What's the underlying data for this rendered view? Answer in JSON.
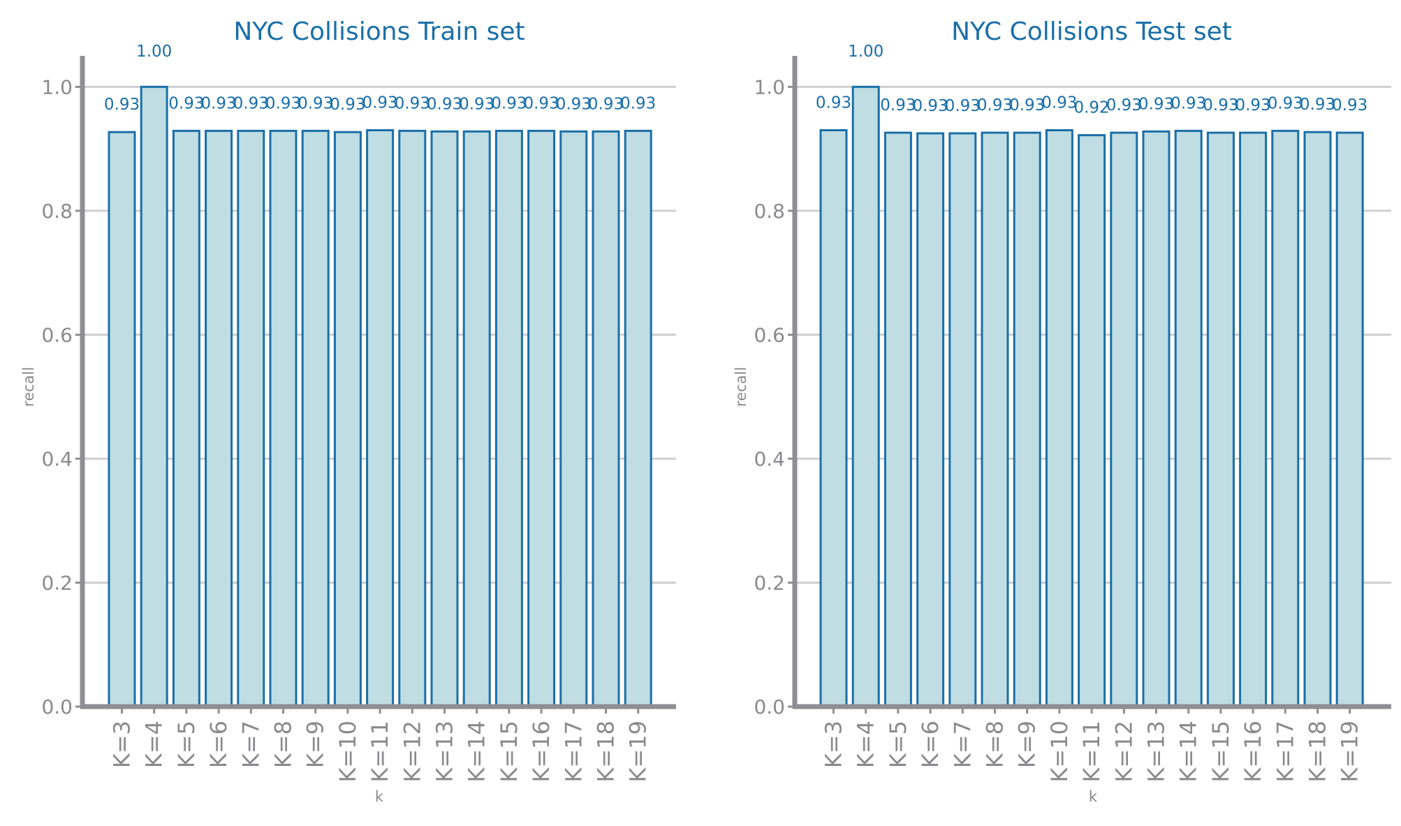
{
  "chart_data": [
    {
      "type": "bar",
      "title": "NYC Collisions Train set",
      "xlabel": "k",
      "ylabel": "recall",
      "ylim": [
        0,
        1.05
      ],
      "yticks": [
        "0.0",
        "0.2",
        "0.4",
        "0.6",
        "0.8",
        "1.0"
      ],
      "grid": true,
      "categories": [
        "K=3",
        "K=4",
        "K=5",
        "K=6",
        "K=7",
        "K=8",
        "K=9",
        "K=10",
        "K=11",
        "K=12",
        "K=13",
        "K=14",
        "K=15",
        "K=16",
        "K=17",
        "K=18",
        "K=19"
      ],
      "values": [
        0.927,
        1.0,
        0.929,
        0.929,
        0.929,
        0.929,
        0.929,
        0.927,
        0.93,
        0.929,
        0.928,
        0.928,
        0.929,
        0.929,
        0.928,
        0.928,
        0.929
      ],
      "data_labels": [
        "0.93",
        "1.00",
        "0.93",
        "0.93",
        "0.93",
        "0.93",
        "0.93",
        "0.93",
        "0.93",
        "0.93",
        "0.93",
        "0.93",
        "0.93",
        "0.93",
        "0.93",
        "0.93",
        "0.93"
      ]
    },
    {
      "type": "bar",
      "title": "NYC Collisions Test set",
      "xlabel": "k",
      "ylabel": "recall",
      "ylim": [
        0,
        1.05
      ],
      "yticks": [
        "0.0",
        "0.2",
        "0.4",
        "0.6",
        "0.8",
        "1.0"
      ],
      "grid": true,
      "categories": [
        "K=3",
        "K=4",
        "K=5",
        "K=6",
        "K=7",
        "K=8",
        "K=9",
        "K=10",
        "K=11",
        "K=12",
        "K=13",
        "K=14",
        "K=15",
        "K=16",
        "K=17",
        "K=18",
        "K=19"
      ],
      "values": [
        0.93,
        1.0,
        0.926,
        0.925,
        0.925,
        0.926,
        0.926,
        0.93,
        0.922,
        0.926,
        0.928,
        0.929,
        0.926,
        0.926,
        0.929,
        0.927,
        0.926
      ],
      "data_labels": [
        "0.93",
        "1.00",
        "0.93",
        "0.93",
        "0.93",
        "0.93",
        "0.93",
        "0.93",
        "0.92",
        "0.93",
        "0.93",
        "0.93",
        "0.93",
        "0.93",
        "0.93",
        "0.93",
        "0.93"
      ]
    }
  ],
  "colors": {
    "bar_fill": "#bfdde2",
    "bar_edge": "#1a6fa8",
    "title": "#1a6fa8",
    "axis": "#8e8e93",
    "grid": "#cfcfcf"
  }
}
